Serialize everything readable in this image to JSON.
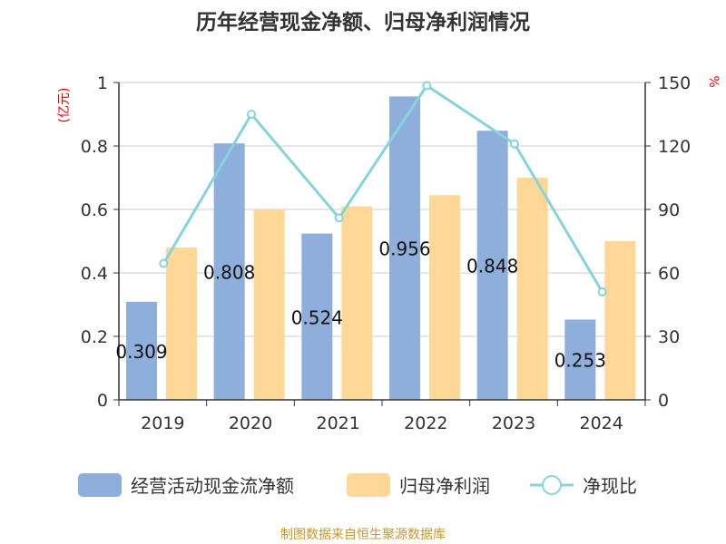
{
  "chart_data": {
    "type": "bar+line",
    "title": "历年经营现金净额、归母净利润情况",
    "left_unit": "(亿元)",
    "right_unit": "%",
    "categories": [
      "2019",
      "2020",
      "2021",
      "2022",
      "2023",
      "2024"
    ],
    "left_ylim": [
      0,
      1
    ],
    "left_ticks": [
      "0",
      "0.2",
      "0.4",
      "0.6",
      "0.8",
      "1"
    ],
    "right_ylim": [
      0,
      150
    ],
    "right_ticks": [
      "0",
      "30",
      "60",
      "90",
      "120",
      "150"
    ],
    "series": [
      {
        "name": "经营活动现金流净额",
        "type": "bar",
        "axis": "left",
        "color": "#8eaedb",
        "values": [
          0.309,
          0.808,
          0.524,
          0.956,
          0.848,
          0.253
        ],
        "labels": [
          "0.309",
          "0.808",
          "0.524",
          "0.956",
          "0.848",
          "0.253"
        ]
      },
      {
        "name": "归母净利润",
        "type": "bar",
        "axis": "left",
        "color": "#ffd897",
        "values": [
          0.48,
          0.6,
          0.61,
          0.645,
          0.7,
          0.5
        ]
      },
      {
        "name": "净现比",
        "type": "line",
        "axis": "right",
        "color": "#86d3d8",
        "values": [
          64.5,
          135,
          86,
          148.5,
          121,
          51
        ]
      }
    ],
    "legend_position": "bottom",
    "source": "制图数据来自恒生聚源数据库"
  }
}
